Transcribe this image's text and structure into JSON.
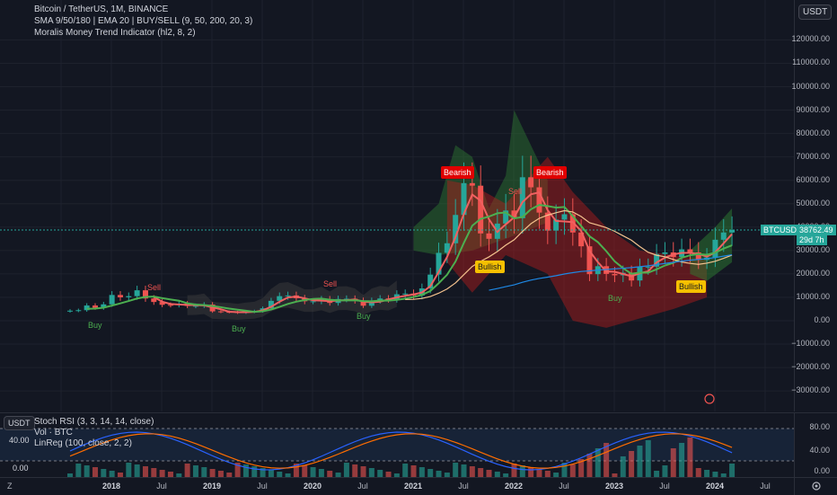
{
  "legend": {
    "symbol": "Bitcoin / TetherUS, 1M, BINANCE",
    "indicator1": "SMA 9/50/180 | EMA 20 | BUY/SELL (9, 50, 200, 20, 3)",
    "indicator2": "Moralis Money Trend Indicator (hl2, 8, 2)",
    "sub1": "Stoch RSI (3, 3, 14, 14, close)",
    "sub2": "Vol · BTC",
    "sub3": "LinReg (100, close, 2, 2)"
  },
  "axis_currency": "USDT",
  "price_labels": [
    "120000.00",
    "110000.00",
    "100000.00",
    "90000.00",
    "80000.00",
    "70000.00",
    "60000.00",
    "50000.00",
    "40000.00",
    "30000.00",
    "20000.00",
    "10000.00",
    "0.00",
    "−10000.00",
    "−20000.00",
    "−30000.00"
  ],
  "sub_labels": [
    "80.00",
    "40.00",
    "0.00"
  ],
  "sub_left_label": "40.00",
  "sub_left_label2": "0.00",
  "current": {
    "symbol": "BTCUSDT",
    "price": "38762.49",
    "countdown": "29d 7h"
  },
  "time_labels": {
    "y2018": "2018",
    "jul1": "Jul",
    "y2019": "2019",
    "jul2": "Jul",
    "y2020": "2020",
    "jul3": "Jul",
    "y2021": "2021",
    "jul4": "Jul",
    "y2022": "2022",
    "jul5": "Jul",
    "y2023": "2023",
    "jul6": "Jul",
    "y2024": "2024",
    "jul7": "Jul"
  },
  "signals": {
    "buy": "Buy",
    "sell": "Sell",
    "bearish": "Bearish",
    "bullish": "Bullish"
  },
  "corner_label": "Z",
  "colors": {
    "up": "#26a69a",
    "down": "#ef5350",
    "bg": "#131722",
    "buy": "#4caf50",
    "sell": "#ef5350",
    "bullish": "#f5c000",
    "bearish": "#e00000"
  },
  "chart_data": {
    "type": "line",
    "title": "Bitcoin / TetherUS, 1M, BINANCE",
    "ylim": [
      -35000,
      125000
    ],
    "close_approx": [
      4300,
      4500,
      6500,
      5500,
      7000,
      11000,
      10000,
      10500,
      13000,
      9500,
      8000,
      6800,
      6700,
      7300,
      6300,
      6400,
      6900,
      4000,
      3800,
      3700,
      3400,
      3800,
      4100,
      5300,
      8500,
      10500,
      10800,
      9600,
      8300,
      8300,
      9200,
      7600,
      9300,
      9400,
      8600,
      6400,
      8600,
      9500,
      9100,
      11300,
      11600,
      10800,
      13800,
      19700,
      29000,
      33100,
      45200,
      58800,
      57700,
      37300,
      35000,
      41500,
      47100,
      43800,
      61300,
      57000,
      46200,
      38500,
      43200,
      45500,
      37700,
      31800,
      19900,
      23300,
      20000,
      19400,
      20500,
      17200,
      23100,
      23100,
      28500,
      29200,
      27200,
      30500,
      29200,
      26000,
      27000,
      34600,
      37700,
      38762
    ],
    "stoch_rsi": {
      "k_end": 95,
      "d_end": 86
    }
  }
}
